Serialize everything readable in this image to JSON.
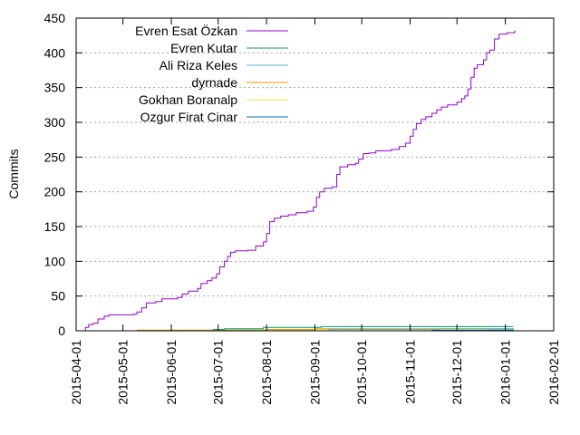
{
  "chart_data": {
    "type": "line",
    "title": "",
    "xlabel": "",
    "ylabel": "Commits",
    "ylim": [
      0,
      450
    ],
    "xlim": [
      "2015-04-01",
      "2016-02-01"
    ],
    "y_ticks": [
      0,
      50,
      100,
      150,
      200,
      250,
      300,
      350,
      400,
      450
    ],
    "x_ticks": [
      "2015-04-01",
      "2015-05-01",
      "2015-06-01",
      "2015-07-01",
      "2015-08-01",
      "2015-09-01",
      "2015-10-01",
      "2015-11-01",
      "2015-12-01",
      "2016-01-01",
      "2016-02-01"
    ],
    "grid": "horizontal dotted",
    "legend_position": "top-left",
    "series": [
      {
        "name": "Evren Esat Özkan",
        "color": "#9400d3",
        "points": [
          [
            "2015-04-04",
            0
          ],
          [
            "2015-04-07",
            5
          ],
          [
            "2015-04-09",
            9
          ],
          [
            "2015-04-12",
            11
          ],
          [
            "2015-04-15",
            17
          ],
          [
            "2015-04-19",
            21
          ],
          [
            "2015-04-22",
            23
          ],
          [
            "2015-05-08",
            24
          ],
          [
            "2015-05-10",
            27
          ],
          [
            "2015-05-13",
            33
          ],
          [
            "2015-05-16",
            40
          ],
          [
            "2015-05-22",
            42
          ],
          [
            "2015-05-26",
            46
          ],
          [
            "2015-06-05",
            48
          ],
          [
            "2015-06-08",
            53
          ],
          [
            "2015-06-12",
            57
          ],
          [
            "2015-06-18",
            61
          ],
          [
            "2015-06-20",
            68
          ],
          [
            "2015-06-24",
            72
          ],
          [
            "2015-06-27",
            76
          ],
          [
            "2015-06-30",
            82
          ],
          [
            "2015-07-02",
            92
          ],
          [
            "2015-07-05",
            100
          ],
          [
            "2015-07-07",
            107
          ],
          [
            "2015-07-09",
            113
          ],
          [
            "2015-07-12",
            115
          ],
          [
            "2015-07-20",
            116
          ],
          [
            "2015-07-25",
            122
          ],
          [
            "2015-07-30",
            128
          ],
          [
            "2015-08-01",
            140
          ],
          [
            "2015-08-03",
            157
          ],
          [
            "2015-08-06",
            162
          ],
          [
            "2015-08-10",
            165
          ],
          [
            "2015-08-15",
            167
          ],
          [
            "2015-08-20",
            170
          ],
          [
            "2015-08-27",
            172
          ],
          [
            "2015-08-31",
            178
          ],
          [
            "2015-09-02",
            192
          ],
          [
            "2015-09-04",
            200
          ],
          [
            "2015-09-07",
            205
          ],
          [
            "2015-09-12",
            207
          ],
          [
            "2015-09-15",
            225
          ],
          [
            "2015-09-17",
            236
          ],
          [
            "2015-09-22",
            239
          ],
          [
            "2015-09-27",
            241
          ],
          [
            "2015-09-29",
            247
          ],
          [
            "2015-10-02",
            255
          ],
          [
            "2015-10-06",
            256
          ],
          [
            "2015-10-10",
            259
          ],
          [
            "2015-10-20",
            261
          ],
          [
            "2015-10-25",
            265
          ],
          [
            "2015-10-29",
            270
          ],
          [
            "2015-11-01",
            280
          ],
          [
            "2015-11-03",
            290
          ],
          [
            "2015-11-05",
            298
          ],
          [
            "2015-11-08",
            304
          ],
          [
            "2015-11-11",
            308
          ],
          [
            "2015-11-15",
            313
          ],
          [
            "2015-11-18",
            318
          ],
          [
            "2015-11-21",
            322
          ],
          [
            "2015-11-25",
            325
          ],
          [
            "2015-12-01",
            329
          ],
          [
            "2015-12-04",
            334
          ],
          [
            "2015-12-06",
            338
          ],
          [
            "2015-12-08",
            348
          ],
          [
            "2015-12-10",
            365
          ],
          [
            "2015-12-12",
            378
          ],
          [
            "2015-12-14",
            383
          ],
          [
            "2015-12-18",
            390
          ],
          [
            "2015-12-20",
            400
          ],
          [
            "2015-12-22",
            404
          ],
          [
            "2015-12-25",
            420
          ],
          [
            "2015-12-28",
            427
          ],
          [
            "2016-01-02",
            429
          ],
          [
            "2016-01-07",
            432
          ]
        ]
      },
      {
        "name": "Evren Kutar",
        "color": "#009e73",
        "points": [
          [
            "2015-06-22",
            0
          ],
          [
            "2015-06-28",
            2
          ],
          [
            "2015-07-05",
            3
          ],
          [
            "2015-07-30",
            5
          ],
          [
            "2015-09-05",
            6
          ],
          [
            "2016-01-06",
            6
          ]
        ]
      },
      {
        "name": "Ali Riza Keles",
        "color": "#56b4e9",
        "points": [
          [
            "2015-09-01",
            0
          ],
          [
            "2015-09-10",
            2
          ],
          [
            "2015-11-20",
            3
          ],
          [
            "2016-01-06",
            4
          ]
        ]
      },
      {
        "name": "dyrnade",
        "color": "#e69f00",
        "points": [
          [
            "2015-04-15",
            0
          ],
          [
            "2015-05-10",
            1
          ],
          [
            "2015-08-01",
            2
          ],
          [
            "2015-09-01",
            3
          ],
          [
            "2016-01-06",
            3
          ]
        ]
      },
      {
        "name": "Gokhan Boranalp",
        "color": "#f0e442",
        "points": [
          [
            "2015-06-01",
            0
          ],
          [
            "2015-07-10",
            1
          ],
          [
            "2015-09-01",
            2
          ],
          [
            "2015-12-20",
            3
          ],
          [
            "2016-01-06",
            3
          ]
        ]
      },
      {
        "name": "Ozgur Firat Cinar",
        "color": "#0072b2",
        "points": [
          [
            "2015-10-01",
            0
          ],
          [
            "2015-11-15",
            1
          ],
          [
            "2015-12-20",
            1
          ],
          [
            "2016-01-06",
            2
          ]
        ]
      }
    ]
  }
}
